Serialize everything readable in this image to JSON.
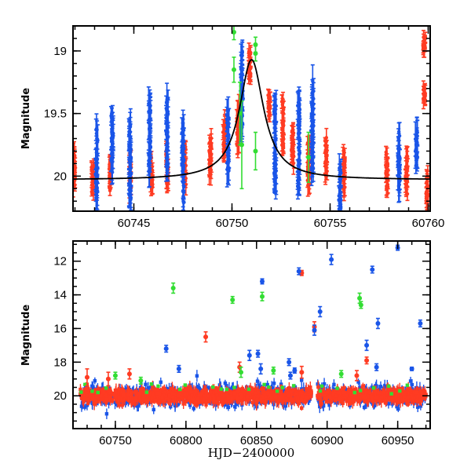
{
  "colors": {
    "r": "#ff3b22",
    "b": "#1a55e8",
    "g": "#33dd33",
    "model": "#000000"
  },
  "chart_data": [
    {
      "type": "scatter",
      "panel": "top",
      "title": "",
      "xlabel": "",
      "ylabel": "Magnitude",
      "xlim": [
        60741.9,
        60760.1
      ],
      "ylim": [
        20.28,
        18.8
      ],
      "y_inverted": true,
      "xticks": [
        60745,
        60750,
        60755,
        60760
      ],
      "xtick_labels": [
        "60745",
        "60750",
        "60755",
        "60760"
      ],
      "x_minor_step": 1,
      "yticks": [
        19,
        19.5,
        20
      ],
      "ytick_labels": [
        "19",
        "19.5",
        "20"
      ],
      "y_minor_step": 0.1,
      "model_curve": {
        "name": "microlensing fit",
        "t0": 60751.0,
        "peak_mag": 19.07,
        "base_mag": 20.03,
        "tE": 0.75,
        "slope": -0.0035
      },
      "series": [
        {
          "name": "r",
          "clusters": [
            [
              60741.95,
              19.95,
              0.22,
              0.07
            ],
            [
              60742.9,
              20.0,
              0.18,
              0.05
            ],
            [
              60743.8,
              20.0,
              0.15,
              0.05
            ],
            [
              60744.8,
              20.0,
              0.2,
              0.06
            ],
            [
              60745.9,
              19.98,
              0.18,
              0.06
            ],
            [
              60746.7,
              19.95,
              0.2,
              0.06
            ],
            [
              60747.6,
              19.92,
              0.2,
              0.06
            ],
            [
              60748.9,
              19.85,
              0.2,
              0.07
            ],
            [
              60749.6,
              19.7,
              0.18,
              0.07
            ],
            [
              60750.3,
              19.6,
              0.2,
              0.07
            ],
            [
              60750.9,
              19.12,
              0.15,
              0.05
            ],
            [
              60751.9,
              19.45,
              0.12,
              0.05
            ],
            [
              60752.6,
              19.6,
              0.25,
              0.08
            ],
            [
              60753.1,
              19.75,
              0.2,
              0.07
            ],
            [
              60753.9,
              19.9,
              0.22,
              0.07
            ],
            [
              60754.8,
              19.85,
              0.2,
              0.07
            ],
            [
              60755.7,
              19.95,
              0.22,
              0.07
            ],
            [
              60757.9,
              19.95,
              0.2,
              0.07
            ],
            [
              60758.9,
              20.0,
              0.2,
              0.07
            ],
            [
              60759.8,
              18.95,
              0.08,
              0.04
            ],
            [
              60759.8,
              19.35,
              0.05,
              0.06
            ],
            [
              60759.95,
              20.1,
              0.15,
              0.06
            ]
          ]
        },
        {
          "name": "b",
          "clusters": [
            [
              60743.1,
              19.9,
              0.35,
              0.1
            ],
            [
              60743.9,
              19.75,
              0.3,
              0.1
            ],
            [
              60744.8,
              19.9,
              0.4,
              0.1
            ],
            [
              60745.8,
              19.7,
              0.35,
              0.1
            ],
            [
              60746.7,
              19.65,
              0.35,
              0.1
            ],
            [
              60747.5,
              19.9,
              0.4,
              0.1
            ],
            [
              60749.8,
              19.75,
              0.35,
              0.1
            ],
            [
              60750.5,
              19.3,
              0.4,
              0.1
            ],
            [
              60752.2,
              19.75,
              0.4,
              0.1
            ],
            [
              60753.4,
              19.75,
              0.45,
              0.1
            ],
            [
              60754.1,
              19.6,
              0.45,
              0.1
            ],
            [
              60755.5,
              20.1,
              0.25,
              0.1
            ],
            [
              60758.5,
              19.85,
              0.3,
              0.1
            ],
            [
              60759.4,
              19.75,
              0.15,
              0.1
            ]
          ]
        },
        {
          "name": "g",
          "points": [
            [
              60750.1,
              18.85,
              0.06
            ],
            [
              60750.1,
              19.15,
              0.1
            ],
            [
              60750.4,
              19.5,
              0.25
            ],
            [
              60750.5,
              19.75,
              0.35
            ],
            [
              60751.2,
              18.95,
              0.06
            ],
            [
              60751.2,
              19.02,
              0.06
            ],
            [
              60751.2,
              19.8,
              0.15
            ],
            [
              60753.9,
              19.85,
              0.2
            ]
          ]
        }
      ]
    },
    {
      "type": "scatter",
      "panel": "bottom",
      "title": "",
      "xlabel": "HJD−2400000",
      "ylabel": "Magnitude",
      "xlim": [
        60720,
        60973
      ],
      "ylim": [
        21.95,
        10.8
      ],
      "y_inverted": true,
      "xticks": [
        60750,
        60800,
        60850,
        60900,
        60950
      ],
      "xtick_labels": [
        "60750",
        "60800",
        "60850",
        "60900",
        "60950"
      ],
      "x_minor_step": 10,
      "yticks": [
        12,
        14,
        16,
        18,
        20
      ],
      "ytick_labels": [
        "12",
        "14",
        "16",
        "18",
        "20"
      ],
      "y_minor_step": 0.5,
      "dense_band": {
        "x_range": [
          60725,
          60970
        ],
        "gap": [
          60889,
          60893
        ],
        "base_mag": 20.0,
        "scatter": 0.35
      },
      "series": [
        {
          "name": "r",
          "points": [
            [
              60730,
              18.9,
              0.5
            ],
            [
              60745,
              19.0,
              0.4
            ],
            [
              60760,
              18.7,
              0.3
            ],
            [
              60814,
              16.5,
              0.3
            ],
            [
              60838,
              18.3,
              0.3
            ],
            [
              60882,
              12.7,
              0.15
            ],
            [
              60891,
              15.9,
              0.3
            ],
            [
              60882,
              18.6,
              0.35
            ],
            [
              60912,
              19.8,
              0.3
            ],
            [
              60928,
              17.9,
              0.2
            ],
            [
              60921,
              18.8,
              0.3
            ]
          ]
        },
        {
          "name": "b",
          "points": [
            [
              60786,
              17.2,
              0.2
            ],
            [
              60845,
              17.6,
              0.3
            ],
            [
              60851,
              17.5,
              0.2
            ],
            [
              60853,
              18.4,
              0.3
            ],
            [
              60854,
              13.2,
              0.15
            ],
            [
              60880,
              12.6,
              0.2
            ],
            [
              60891,
              16.1,
              0.3
            ],
            [
              60895,
              15.0,
              0.3
            ],
            [
              60903,
              11.9,
              0.3
            ],
            [
              60932,
              12.5,
              0.2
            ],
            [
              60936,
              15.7,
              0.3
            ],
            [
              60966,
              15.7,
              0.2
            ],
            [
              60950,
              11.2,
              0.15
            ],
            [
              60873,
              18.0,
              0.2
            ],
            [
              60928,
              17.0,
              0.3
            ],
            [
              60935,
              18.3,
              0.2
            ],
            [
              60960,
              18.4,
              0.1
            ],
            [
              60877,
              18.5,
              0.15
            ],
            [
              60795,
              18.4,
              0.2
            ],
            [
              60874,
              18.8,
              0.2
            ]
          ]
        },
        {
          "name": "g",
          "points": [
            [
              60791,
              13.6,
              0.3
            ],
            [
              60833,
              14.3,
              0.2
            ],
            [
              60854,
              14.1,
              0.25
            ],
            [
              60923,
              14.2,
              0.3
            ],
            [
              60924,
              14.6,
              0.2
            ],
            [
              60839,
              18.6,
              0.3
            ],
            [
              60862,
              18.5,
              0.2
            ],
            [
              60910,
              18.7,
              0.2
            ],
            [
              60750,
              18.8,
              0.2
            ],
            [
              60768,
              19.1,
              0.2
            ]
          ]
        }
      ]
    }
  ]
}
